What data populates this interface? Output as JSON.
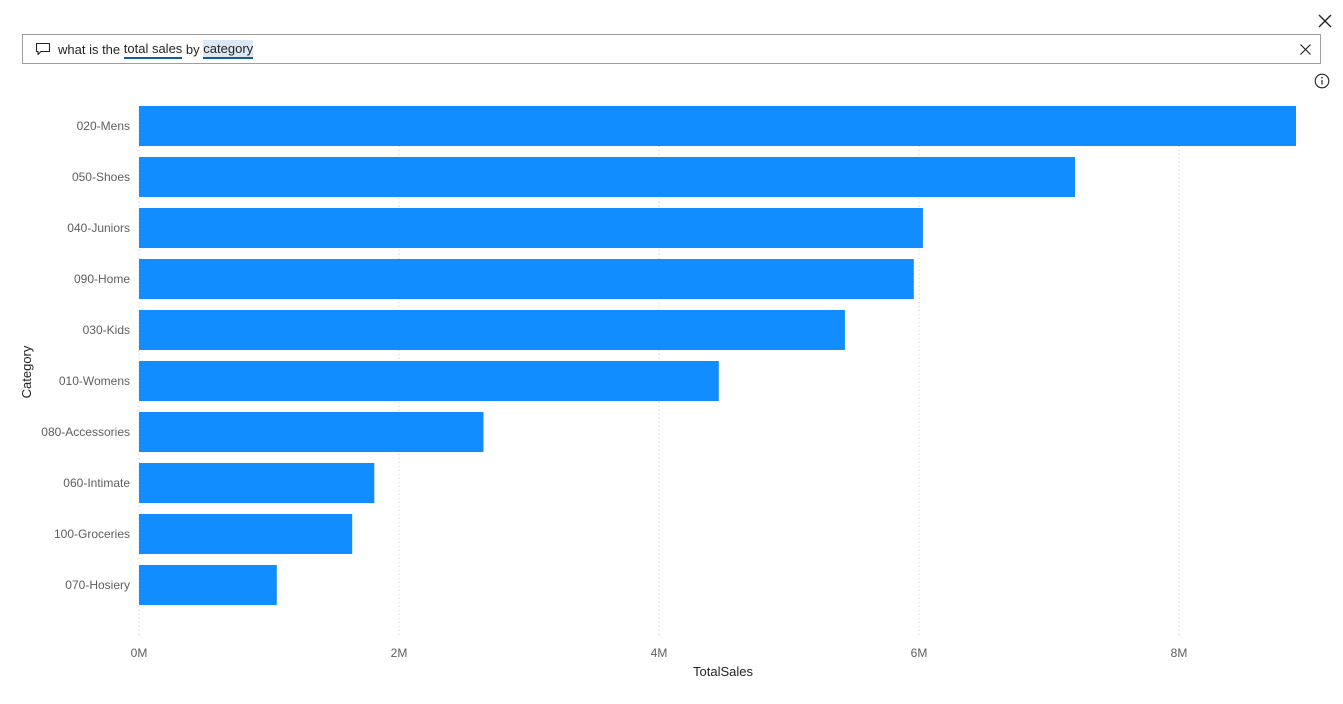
{
  "search": {
    "tokens": [
      {
        "text": "what is the ",
        "style": "plain"
      },
      {
        "text": "total sales",
        "style": "underline"
      },
      {
        "text": " by ",
        "style": "plain"
      },
      {
        "text": "category",
        "style": "highlight"
      }
    ]
  },
  "icons": {
    "close": "close-icon",
    "comment": "comment-icon",
    "clear": "clear-icon",
    "info": "info-icon"
  },
  "colors": {
    "bar": "#118dff",
    "grid": "#c8c6c4",
    "token_underline": "#1b5a8f",
    "token_highlight": "#dbe7f2"
  },
  "chart_data": {
    "type": "bar",
    "orientation": "horizontal",
    "categories": [
      "020-Mens",
      "050-Shoes",
      "040-Juniors",
      "090-Home",
      "030-Kids",
      "010-Womens",
      "080-Accessories",
      "060-Intimate",
      "100-Groceries",
      "070-Hosiery"
    ],
    "values": [
      8900000,
      7200000,
      6030000,
      5960000,
      5430000,
      4460000,
      2650000,
      1810000,
      1640000,
      1060000
    ],
    "xlabel": "TotalSales",
    "ylabel": "Category",
    "xlim": [
      0,
      9000000
    ],
    "xticks": [
      0,
      2000000,
      4000000,
      6000000,
      8000000
    ],
    "xtick_labels": [
      "0M",
      "2M",
      "4M",
      "6M",
      "8M"
    ],
    "grid": "vertical-dotted",
    "legend": "none"
  }
}
